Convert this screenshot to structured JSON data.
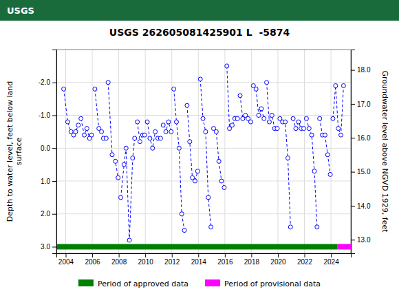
{
  "chart_data": {
    "type": "line",
    "title": "USGS 262605081425901 L  -5874",
    "annotations": [
      {
        "text": "USGS",
        "color": "#1a6b3c"
      }
    ],
    "y_label": "Depth to water level, feet below land\nsurface",
    "y2_label": "Groundwater level above NGVD 1929, feet",
    "xlim": [
      2003.3,
      2025.5
    ],
    "xticks": [
      2004,
      2006,
      2008,
      2010,
      2012,
      2014,
      2016,
      2018,
      2020,
      2022,
      2024
    ],
    "ylim": [
      3.2,
      -3.0
    ],
    "yticks": [
      {
        "value": -2.0,
        "label": "-2.0"
      },
      {
        "value": -1.0,
        "label": "-1.0"
      },
      {
        "value": 0.0,
        "label": "0.0"
      },
      {
        "value": 1.0,
        "label": "1.0"
      },
      {
        "value": 2.0,
        "label": "2.0"
      },
      {
        "value": 3.0,
        "label": "3.0"
      }
    ],
    "y2lim": [
      12.6,
      18.6
    ],
    "y2ticks": [
      {
        "value": 13.0,
        "label": "13.0"
      },
      {
        "value": 14.0,
        "label": "14.0"
      },
      {
        "value": 15.0,
        "label": "15.0"
      },
      {
        "value": 16.0,
        "label": "16.0"
      },
      {
        "value": 17.0,
        "label": "17.0"
      },
      {
        "value": 18.0,
        "label": "18.0"
      }
    ],
    "grid": true,
    "color": "#0000ff",
    "marker": "circle",
    "line_style": "dashed",
    "series": [
      {
        "x": [
          2003.85,
          2004.15,
          2004.4,
          2004.6,
          2004.75,
          2004.95
        ],
        "values": [
          -1.8,
          -0.8,
          -0.5,
          -0.4,
          -0.5,
          -0.7
        ]
      },
      {
        "x": [
          2005.15,
          2005.4,
          2005.6,
          2005.8,
          2005.95
        ],
        "values": [
          -0.9,
          -0.4,
          -0.6,
          -0.3,
          -0.4
        ]
      },
      {
        "x": [
          2006.2,
          2006.5,
          2006.7,
          2006.85,
          2007.05
        ],
        "values": [
          -1.8,
          -0.6,
          -0.5,
          -0.3,
          -0.3
        ]
      },
      {
        "x": [
          2007.2,
          2007.5,
          2007.75,
          2007.95
        ],
        "values": [
          -2.0,
          0.2,
          0.4,
          0.9
        ]
      },
      {
        "x": [
          2008.15,
          2008.4,
          2008.55,
          2008.8,
          2009.05,
          2009.2
        ],
        "values": [
          1.5,
          0.5,
          0.0,
          2.8,
          0.3,
          -0.3
        ]
      },
      {
        "x": [
          2009.4,
          2009.6,
          2009.8,
          2009.95
        ],
        "values": [
          -0.8,
          -0.2,
          -0.4,
          -0.4
        ]
      },
      {
        "x": [
          2010.15,
          2010.35,
          2010.55,
          2010.75,
          2010.95,
          2011.15
        ],
        "values": [
          -0.8,
          -0.3,
          -0.0,
          -0.5,
          -0.3,
          -0.3
        ]
      },
      {
        "x": [
          2011.35,
          2011.55,
          2011.75,
          2011.95
        ],
        "values": [
          -0.7,
          -0.5,
          -0.8,
          -0.5
        ]
      },
      {
        "x": [
          2012.15,
          2012.35,
          2012.55,
          2012.75,
          2012.95
        ],
        "values": [
          -1.8,
          -0.8,
          -0.0,
          2.0,
          2.5
        ]
      },
      {
        "x": [
          2013.15,
          2013.35,
          2013.55,
          2013.75,
          2013.95
        ],
        "values": [
          -1.3,
          -0.2,
          0.9,
          1.0,
          0.7
        ]
      },
      {
        "x": [
          2014.15,
          2014.35,
          2014.55,
          2014.75,
          2014.95
        ],
        "values": [
          -2.1,
          -0.9,
          -0.5,
          1.5,
          2.4
        ]
      },
      {
        "x": [
          2015.15,
          2015.35,
          2015.55,
          2015.75,
          2015.95
        ],
        "values": [
          -0.6,
          -0.5,
          0.4,
          1.0,
          1.2
        ]
      },
      {
        "x": [
          2016.15,
          2016.35,
          2016.55,
          2016.75,
          2016.95
        ],
        "values": [
          -2.5,
          -0.6,
          -0.7,
          -0.9,
          -0.9
        ]
      },
      {
        "x": [
          2017.15,
          2017.35,
          2017.55,
          2017.75,
          2017.95
        ],
        "values": [
          -1.6,
          -0.9,
          -1.0,
          -0.9,
          -0.8
        ]
      },
      {
        "x": [
          2018.15,
          2018.35,
          2018.55,
          2018.75,
          2018.95
        ],
        "values": [
          -1.9,
          -1.8,
          -1.0,
          -1.2,
          -0.9
        ]
      },
      {
        "x": [
          2019.15,
          2019.35,
          2019.55,
          2019.75,
          2019.95
        ],
        "values": [
          -2.0,
          -0.8,
          -1.0,
          -0.6,
          -0.6
        ]
      },
      {
        "x": [
          2020.15,
          2020.35,
          2020.55,
          2020.75,
          2020.95
        ],
        "values": [
          -0.9,
          -0.8,
          -0.8,
          0.3,
          2.4
        ]
      },
      {
        "x": [
          2021.15,
          2021.35,
          2021.55,
          2021.75,
          2021.95
        ],
        "values": [
          -0.9,
          -0.6,
          -0.8,
          -0.6,
          -0.6
        ]
      },
      {
        "x": [
          2022.15,
          2022.35,
          2022.55,
          2022.75,
          2022.95
        ],
        "values": [
          -0.9,
          -0.6,
          -0.4,
          0.7,
          2.4
        ]
      },
      {
        "x": [
          2023.15,
          2023.35,
          2023.55,
          2023.75,
          2023.95
        ],
        "values": [
          -0.9,
          -0.4,
          -0.4,
          0.2,
          0.8
        ]
      },
      {
        "x": [
          2024.15,
          2024.35,
          2024.55,
          2024.75,
          2024.95
        ],
        "values": [
          -0.9,
          -1.9,
          -0.6,
          -0.4,
          -1.9
        ]
      }
    ],
    "periods": [
      {
        "name": "Period of approved data",
        "color": "#008000",
        "start": 2003.3,
        "end": 2024.5,
        "y": 3.0
      },
      {
        "name": "Period of provisional data",
        "color": "#ff00ff",
        "start": 2024.5,
        "end": 2025.5,
        "y": 3.0
      }
    ]
  }
}
